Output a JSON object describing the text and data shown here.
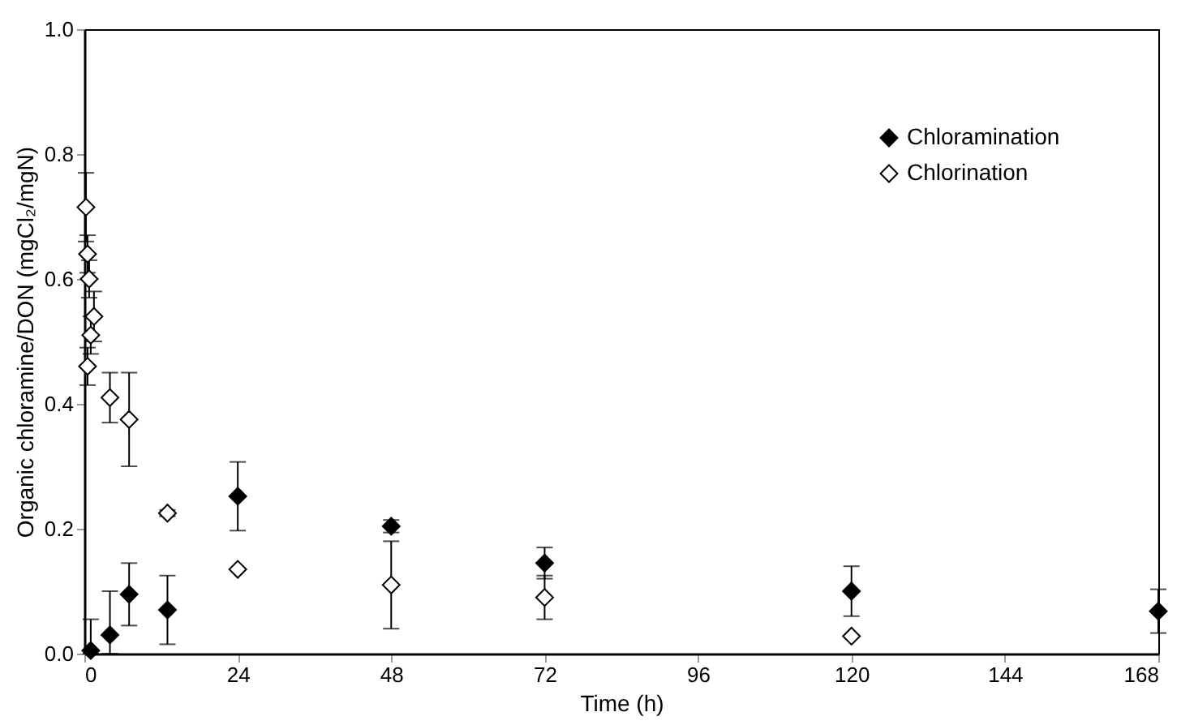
{
  "chart_data": {
    "type": "scatter",
    "xlabel": "Time (h)",
    "ylabel": "Organic chloramine/DON (mgCl₂/mgN)",
    "xlim": [
      0,
      168
    ],
    "xticks": [
      0,
      24,
      48,
      72,
      96,
      120,
      144,
      168
    ],
    "ylim": [
      0,
      1.0
    ],
    "yticks": [
      {
        "value": 0,
        "label": "0.0"
      },
      {
        "value": 0.2,
        "label": "0.2"
      },
      {
        "value": 0.4,
        "label": "0.4"
      },
      {
        "value": 0.6,
        "label": "0.6"
      },
      {
        "value": 0.8,
        "label": "0.8"
      },
      {
        "value": 1.0,
        "label": "1.0"
      }
    ],
    "grid": false,
    "legend": "top right",
    "marker": "diamond",
    "series": [
      {
        "name": "Chloramination",
        "color": "#000000",
        "x": [
          1,
          4,
          7,
          13,
          24,
          48,
          72,
          120,
          168
        ],
        "values": [
          0.005,
          0.03,
          0.095,
          0.07,
          0.252,
          0.204,
          0.145,
          0.1,
          0.068
        ],
        "errors": [
          [
            0,
            0.055
          ],
          [
            0,
            0.1
          ],
          0.05,
          0.055,
          0.055,
          0.01,
          0.025,
          0.04,
          0.035
        ]
      },
      {
        "name": "Chlorination",
        "color": "#ffffff",
        "x": [
          0.25,
          0.5,
          0.75,
          1,
          1.5,
          0.5,
          4,
          7,
          13,
          24,
          48,
          72,
          120
        ],
        "values": [
          0.715,
          0.64,
          0.6,
          0.51,
          0.54,
          0.46,
          0.41,
          0.375,
          0.225,
          0.135,
          0.11,
          0.09,
          0.028
        ],
        "errors": [
          0.055,
          0.03,
          0.03,
          0.03,
          0.04,
          0.03,
          0.04,
          0.075,
          0.005,
          null,
          0.07,
          0.035,
          null
        ]
      }
    ]
  }
}
